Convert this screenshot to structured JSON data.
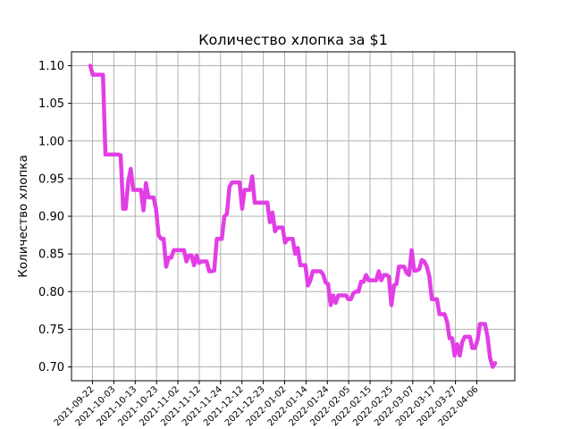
{
  "chart_data": {
    "type": "line",
    "title": "Количество хлопка за $1",
    "xlabel": "",
    "ylabel": "Количество хлопка",
    "ylim": [
      0.68,
      1.12
    ],
    "y_ticks": [
      "0.70",
      "0.75",
      "0.80",
      "0.85",
      "0.90",
      "0.95",
      "1.00",
      "1.05",
      "1.10"
    ],
    "x_ticks": [
      "2021-09-22",
      "2021-10-03",
      "2021-10-13",
      "2021-10-23",
      "2021-11-02",
      "2021-11-12",
      "2021-11-24",
      "2021-12-12",
      "2021-12-23",
      "2022-01-02",
      "2022-01-14",
      "2022-01-24",
      "2022-02-05",
      "2022-02-15",
      "2022-02-25",
      "2022-03-07",
      "2022-03-17",
      "2022-03-27",
      "2022-04-06"
    ],
    "grid": true,
    "line_color": "#e23ee6",
    "series": [
      {
        "values": [
          1.1,
          1.088,
          1.088,
          1.088,
          1.088,
          1.088,
          0.982,
          0.982,
          0.982,
          0.982,
          0.982,
          0.982,
          0.981,
          0.91,
          0.91,
          0.946,
          0.963,
          0.935,
          0.935,
          0.935,
          0.935,
          0.908,
          0.944,
          0.925,
          0.925,
          0.925,
          0.91,
          0.875,
          0.87,
          0.87,
          0.833,
          0.845,
          0.845,
          0.855,
          0.855,
          0.855,
          0.855,
          0.855,
          0.84,
          0.848,
          0.848,
          0.835,
          0.848,
          0.838,
          0.84,
          0.84,
          0.84,
          0.827,
          0.827,
          0.828,
          0.87,
          0.87,
          0.87,
          0.9,
          0.903,
          0.939,
          0.945,
          0.945,
          0.945,
          0.945,
          0.91,
          0.935,
          0.935,
          0.935,
          0.953,
          0.918,
          0.918,
          0.918,
          0.918,
          0.918,
          0.918,
          0.892,
          0.905,
          0.88,
          0.885,
          0.885,
          0.885,
          0.865,
          0.87,
          0.87,
          0.87,
          0.85,
          0.858,
          0.835,
          0.835,
          0.835,
          0.808,
          0.815,
          0.827,
          0.827,
          0.827,
          0.827,
          0.823,
          0.812,
          0.81,
          0.782,
          0.795,
          0.785,
          0.795,
          0.795,
          0.795,
          0.795,
          0.79,
          0.79,
          0.798,
          0.8,
          0.8,
          0.813,
          0.813,
          0.822,
          0.815,
          0.815,
          0.815,
          0.815,
          0.827,
          0.815,
          0.822,
          0.822,
          0.82,
          0.782,
          0.808,
          0.81,
          0.833,
          0.833,
          0.833,
          0.825,
          0.822,
          0.855,
          0.828,
          0.828,
          0.83,
          0.842,
          0.84,
          0.833,
          0.82,
          0.79,
          0.79,
          0.79,
          0.77,
          0.77,
          0.77,
          0.76,
          0.738,
          0.738,
          0.715,
          0.73,
          0.715,
          0.733,
          0.74,
          0.74,
          0.74,
          0.725,
          0.725,
          0.735,
          0.757,
          0.757,
          0.757,
          0.74,
          0.712,
          0.7,
          0.705
        ]
      }
    ]
  }
}
